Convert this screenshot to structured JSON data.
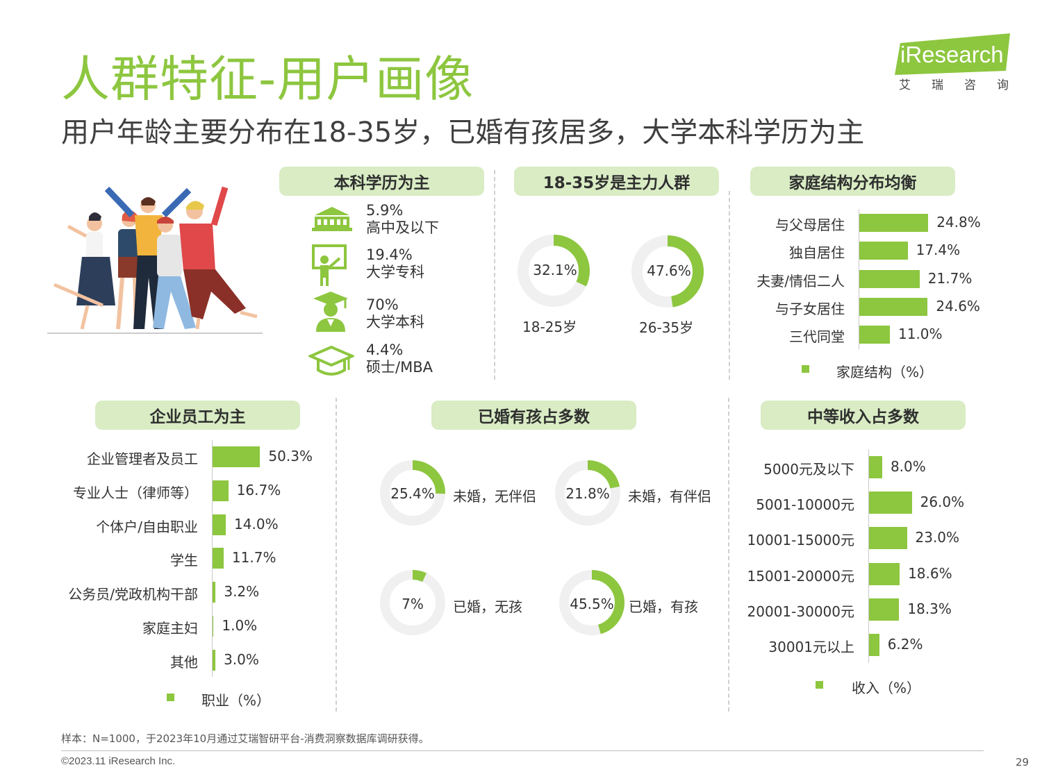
{
  "title": "人群特征-用户画像",
  "subtitle": "用户年龄主要分布在18-35岁，已婚有孩居多，大学本科学历为主",
  "logo": {
    "brand": "iResearch",
    "cn": "艾瑞咨询"
  },
  "colors": {
    "accent": "#8dc63f",
    "pill_bg": "#d9ecc4",
    "donut_bg": "#f0f0f0"
  },
  "panels": {
    "education": {
      "heading": "本科学历为主",
      "items": [
        {
          "icon": "school-building-icon",
          "value": "5.9%",
          "label": "高中及以下"
        },
        {
          "icon": "teacher-board-icon",
          "value": "19.4%",
          "label": "大学专科"
        },
        {
          "icon": "graduate-student-icon",
          "value": "70%",
          "label": "大学本科"
        },
        {
          "icon": "graduation-cap-icon",
          "value": "4.4%",
          "label": "硕士/MBA"
        }
      ]
    },
    "age": {
      "heading": "18-35岁是主力人群",
      "items": [
        {
          "value": 32.1,
          "value_label": "32.1%",
          "label": "18-25岁"
        },
        {
          "value": 47.6,
          "value_label": "47.6%",
          "label": "26-35岁"
        }
      ]
    },
    "family": {
      "heading": "家庭结构分布均衡",
      "legend": "家庭结构（%）"
    },
    "occupation": {
      "heading": "企业员工为主",
      "legend": "职业（%）"
    },
    "marital": {
      "heading": "已婚有孩占多数",
      "items": [
        {
          "value": 25.4,
          "value_label": "25.4%",
          "label": "未婚，无伴侣"
        },
        {
          "value": 21.8,
          "value_label": "21.8%",
          "label": "未婚，有伴侣"
        },
        {
          "value": 7,
          "value_label": "7%",
          "label": "已婚，无孩"
        },
        {
          "value": 45.5,
          "value_label": "45.5%",
          "label": "已婚，有孩"
        }
      ]
    },
    "income": {
      "heading": "中等收入占多数",
      "legend": "收入（%）"
    }
  },
  "chart_data": [
    {
      "type": "bar",
      "orientation": "horizontal",
      "categories": [
        "与父母居住",
        "独自居住",
        "夫妻/情侣二人",
        "与子女居住",
        "三代同堂"
      ],
      "series": [
        {
          "name": "家庭结构（%）",
          "values": [
            24.8,
            17.4,
            21.7,
            24.6,
            11.0
          ]
        }
      ],
      "labels": [
        "24.8%",
        "17.4%",
        "21.7%",
        "24.6%",
        "11.0%"
      ]
    },
    {
      "type": "bar",
      "orientation": "horizontal",
      "categories": [
        "企业管理者及员工",
        "专业人士（律师等）",
        "个体户/自由职业",
        "学生",
        "公务员/党政机构干部",
        "家庭主妇",
        "其他"
      ],
      "series": [
        {
          "name": "职业（%）",
          "values": [
            50.3,
            16.7,
            14.0,
            11.7,
            3.2,
            1.0,
            3.0
          ]
        }
      ],
      "labels": [
        "50.3%",
        "16.7%",
        "14.0%",
        "11.7%",
        "3.2%",
        "1.0%",
        "3.0%"
      ]
    },
    {
      "type": "bar",
      "orientation": "horizontal",
      "categories": [
        "5000元及以下",
        "5001-10000元",
        "10001-15000元",
        "15001-20000元",
        "20001-30000元",
        "30001元以上"
      ],
      "series": [
        {
          "name": "收入（%）",
          "values": [
            8.0,
            26.0,
            23.0,
            18.6,
            18.3,
            6.2
          ]
        }
      ],
      "labels": [
        "8.0%",
        "26.0%",
        "23.0%",
        "18.6%",
        "18.3%",
        "6.2%"
      ]
    }
  ],
  "footnote": "样本：N=1000，于2023年10月通过艾瑞智研平台-消费洞察数据库调研获得。",
  "copyright": "©2023.11 iResearch Inc.",
  "page_number": "29"
}
